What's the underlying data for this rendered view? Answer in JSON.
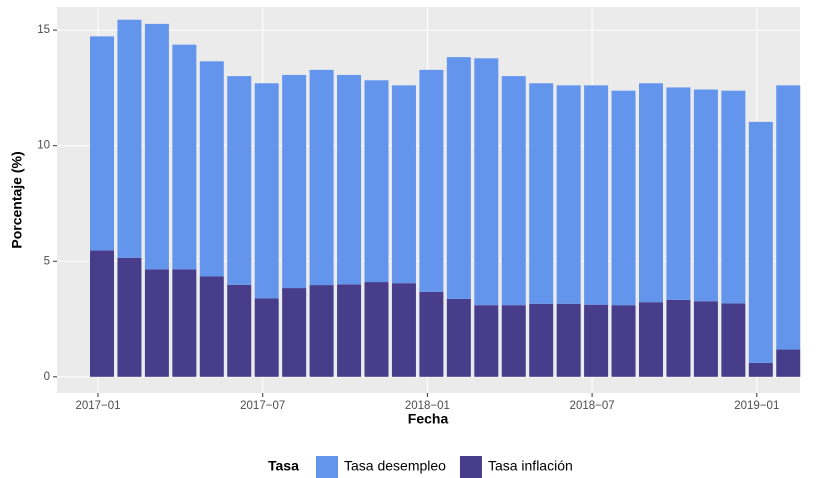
{
  "chart_data": {
    "type": "bar",
    "stacked": true,
    "xlabel": "Fecha",
    "ylabel": "Porcentaje (%)",
    "legend_title": "Tasa",
    "x": [
      "2017-01",
      "2017-02",
      "2017-03",
      "2017-04",
      "2017-05",
      "2017-06",
      "2017-07",
      "2017-08",
      "2017-09",
      "2017-10",
      "2017-11",
      "2017-12",
      "2018-01",
      "2018-02",
      "2018-03",
      "2018-04",
      "2018-05",
      "2018-06",
      "2018-07",
      "2018-08",
      "2018-09",
      "2018-10",
      "2018-11",
      "2018-12",
      "2019-01",
      "2019-02"
    ],
    "series": [
      {
        "name": "Tasa inflación",
        "color": "#483d8b",
        "values": [
          5.47,
          5.15,
          4.65,
          4.65,
          4.34,
          3.98,
          3.39,
          3.84,
          3.97,
          4.0,
          4.1,
          4.05,
          3.68,
          3.37,
          3.1,
          3.1,
          3.16,
          3.16,
          3.12,
          3.1,
          3.23,
          3.33,
          3.27,
          3.18,
          0.6,
          1.18
        ]
      },
      {
        "name": "Tasa desempleo",
        "color": "#6495ed",
        "values": [
          9.26,
          10.3,
          10.62,
          9.72,
          9.31,
          9.03,
          9.31,
          9.22,
          9.31,
          9.06,
          8.73,
          8.56,
          9.6,
          10.46,
          10.68,
          9.91,
          9.54,
          9.45,
          9.49,
          9.28,
          9.47,
          9.19,
          9.16,
          9.2,
          10.43,
          11.43
        ]
      }
    ],
    "ylim": [
      -0.7,
      16.0
    ],
    "yticks": [
      0,
      5,
      10,
      15
    ],
    "xticks": [
      {
        "value": "2017-01",
        "label": "2017−01"
      },
      {
        "value": "2017-07",
        "label": "2017−07"
      },
      {
        "value": "2018-01",
        "label": "2018−01"
      },
      {
        "value": "2018-07",
        "label": "2018−07"
      },
      {
        "value": "2019-01",
        "label": "2019−01"
      }
    ],
    "legend_position": "bottom",
    "grid": true
  }
}
